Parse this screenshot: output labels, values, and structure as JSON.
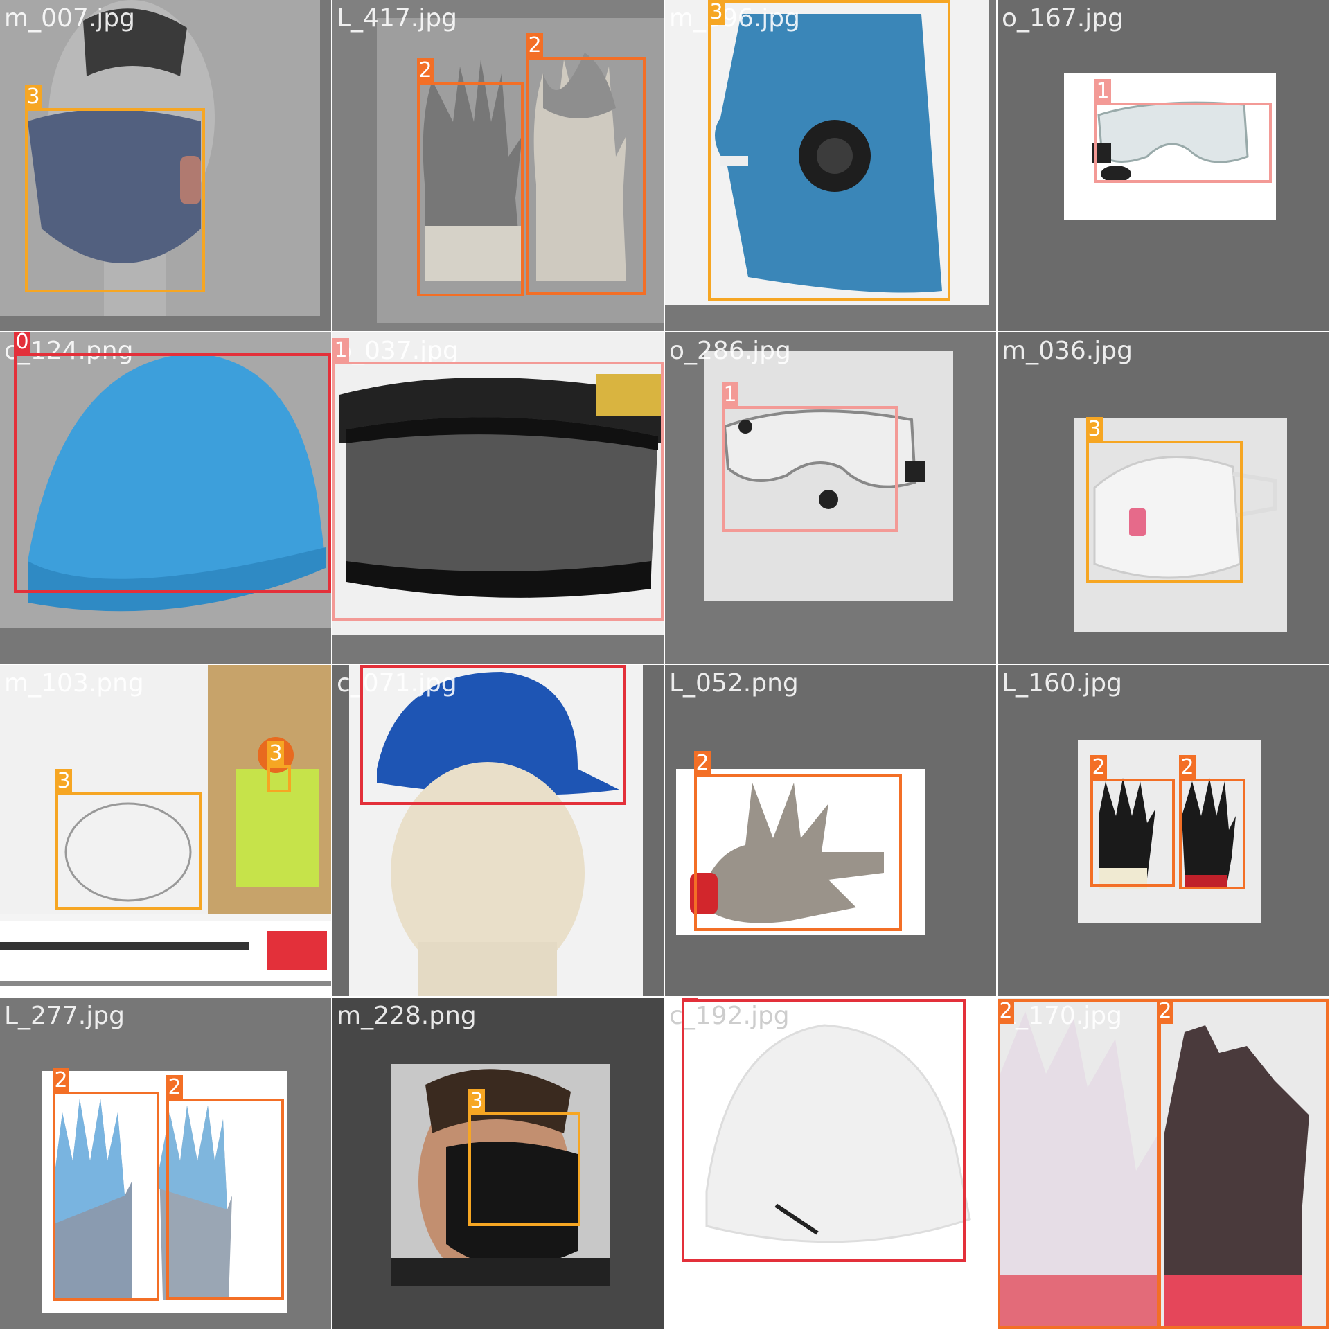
{
  "class_colors": {
    "0": "#e3303a",
    "1": "#f39a96",
    "2": "#f36f26",
    "3": "#f6a623"
  },
  "tiles": [
    {
      "filename": "m_007.jpg",
      "subject": "face-mask-on-mannequin",
      "boxes": [
        {
          "cls": "3"
        }
      ]
    },
    {
      "filename": "L_417.jpg",
      "subject": "gloves-pair",
      "boxes": [
        {
          "cls": "2"
        },
        {
          "cls": "2"
        }
      ]
    },
    {
      "filename": "m_396.jpg",
      "subject": "blue-respirator-mask",
      "boxes": [
        {
          "cls": "3"
        }
      ]
    },
    {
      "filename": "o_167.jpg",
      "subject": "safety-goggles",
      "boxes": [
        {
          "cls": "1"
        }
      ]
    },
    {
      "filename": "c_124.png",
      "subject": "blue-hard-hat",
      "boxes": [
        {
          "cls": "0"
        }
      ]
    },
    {
      "filename": "o_037.jpg",
      "subject": "dark-goggles",
      "boxes": [
        {
          "cls": "1"
        }
      ]
    },
    {
      "filename": "o_286.jpg",
      "subject": "safety-goggles",
      "boxes": [
        {
          "cls": "1"
        }
      ]
    },
    {
      "filename": "m_036.jpg",
      "subject": "white-respirator",
      "boxes": [
        {
          "cls": "3"
        }
      ]
    },
    {
      "filename": "m_103.png",
      "subject": "respirator-ad",
      "boxes": [
        {
          "cls": "3"
        },
        {
          "cls": "3"
        }
      ]
    },
    {
      "filename": "c_071.jpg",
      "subject": "hard-hat-on-mannequin",
      "boxes": [
        {
          "cls": "0"
        }
      ]
    },
    {
      "filename": "L_052.png",
      "subject": "chainmail-glove",
      "boxes": [
        {
          "cls": "2"
        }
      ]
    },
    {
      "filename": "L_160.jpg",
      "subject": "black-gloves",
      "boxes": [
        {
          "cls": "2"
        },
        {
          "cls": "2"
        }
      ]
    },
    {
      "filename": "L_277.jpg",
      "subject": "blue-gloves",
      "boxes": [
        {
          "cls": "2"
        },
        {
          "cls": "2"
        }
      ]
    },
    {
      "filename": "m_228.png",
      "subject": "black-face-mask",
      "boxes": [
        {
          "cls": "3"
        }
      ]
    },
    {
      "filename": "c_192.jpg",
      "subject": "white-hard-hat",
      "boxes": [
        {
          "cls": "0"
        }
      ]
    },
    {
      "filename": "L_170.jpg",
      "subject": "grip-gloves",
      "boxes": [
        {
          "cls": "2"
        },
        {
          "cls": "2"
        }
      ]
    }
  ]
}
